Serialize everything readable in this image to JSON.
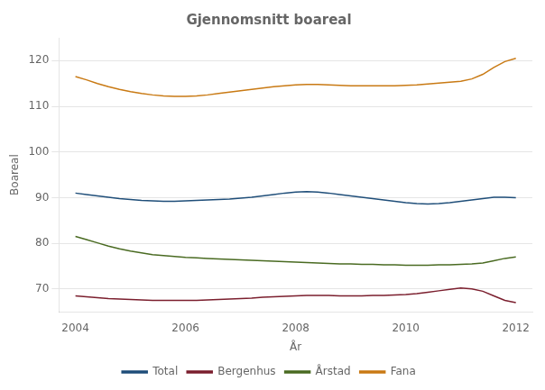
{
  "chart_data": {
    "type": "line",
    "title": "Gjennomsnitt boareal",
    "xlabel": "År",
    "ylabel": "Boareal",
    "x": [
      2004,
      2004.2,
      2004.4,
      2004.6,
      2004.8,
      2005,
      2005.2,
      2005.4,
      2005.6,
      2005.8,
      2006,
      2006.2,
      2006.4,
      2006.6,
      2006.8,
      2007,
      2007.2,
      2007.4,
      2007.6,
      2007.8,
      2008,
      2008.2,
      2008.4,
      2008.6,
      2008.8,
      2009,
      2009.2,
      2009.4,
      2009.6,
      2009.8,
      2010,
      2010.2,
      2010.4,
      2010.6,
      2010.8,
      2011,
      2011.2,
      2011.4,
      2011.6,
      2011.8,
      2012
    ],
    "series": [
      {
        "name": "Total",
        "color": "#1f4e79",
        "values": [
          91.0,
          90.7,
          90.4,
          90.1,
          89.8,
          89.6,
          89.4,
          89.3,
          89.2,
          89.2,
          89.3,
          89.4,
          89.5,
          89.6,
          89.7,
          89.9,
          90.1,
          90.4,
          90.7,
          91.0,
          91.2,
          91.3,
          91.2,
          91.0,
          90.7,
          90.4,
          90.1,
          89.8,
          89.5,
          89.2,
          88.9,
          88.7,
          88.6,
          88.7,
          88.9,
          89.2,
          89.5,
          89.8,
          90.1,
          90.1,
          90.0
        ]
      },
      {
        "name": "Bergenhus",
        "color": "#7b1f2e",
        "values": [
          68.5,
          68.3,
          68.1,
          67.9,
          67.8,
          67.7,
          67.6,
          67.5,
          67.5,
          67.5,
          67.5,
          67.5,
          67.6,
          67.7,
          67.8,
          67.9,
          68.0,
          68.2,
          68.3,
          68.4,
          68.5,
          68.6,
          68.6,
          68.6,
          68.5,
          68.5,
          68.5,
          68.6,
          68.6,
          68.7,
          68.8,
          69.0,
          69.3,
          69.6,
          69.9,
          70.2,
          70.0,
          69.5,
          68.5,
          67.5,
          67.0
        ]
      },
      {
        "name": "Årstad",
        "color": "#4a6b22",
        "values": [
          81.5,
          80.8,
          80.1,
          79.4,
          78.8,
          78.3,
          77.9,
          77.5,
          77.3,
          77.1,
          76.9,
          76.8,
          76.7,
          76.6,
          76.5,
          76.4,
          76.3,
          76.2,
          76.1,
          76.0,
          75.9,
          75.8,
          75.7,
          75.6,
          75.5,
          75.5,
          75.4,
          75.4,
          75.3,
          75.3,
          75.2,
          75.2,
          75.2,
          75.3,
          75.3,
          75.4,
          75.5,
          75.7,
          76.2,
          76.7,
          77.0
        ]
      },
      {
        "name": "Fana",
        "color": "#c97a14",
        "values": [
          116.5,
          115.8,
          115.0,
          114.3,
          113.7,
          113.2,
          112.8,
          112.5,
          112.3,
          112.2,
          112.2,
          112.3,
          112.5,
          112.8,
          113.1,
          113.4,
          113.7,
          114.0,
          114.3,
          114.5,
          114.7,
          114.8,
          114.8,
          114.7,
          114.6,
          114.5,
          114.5,
          114.5,
          114.5,
          114.5,
          114.6,
          114.7,
          114.9,
          115.1,
          115.3,
          115.5,
          116.0,
          117.0,
          118.5,
          119.8,
          120.5
        ]
      }
    ],
    "xlim": [
      2003.7,
      2012.3
    ],
    "xticks": [
      2004,
      2006,
      2008,
      2010,
      2012
    ],
    "ylim": [
      65,
      125
    ],
    "yticks": [
      70,
      80,
      90,
      100,
      110,
      120
    ],
    "grid": "y",
    "legend": "bottom"
  }
}
